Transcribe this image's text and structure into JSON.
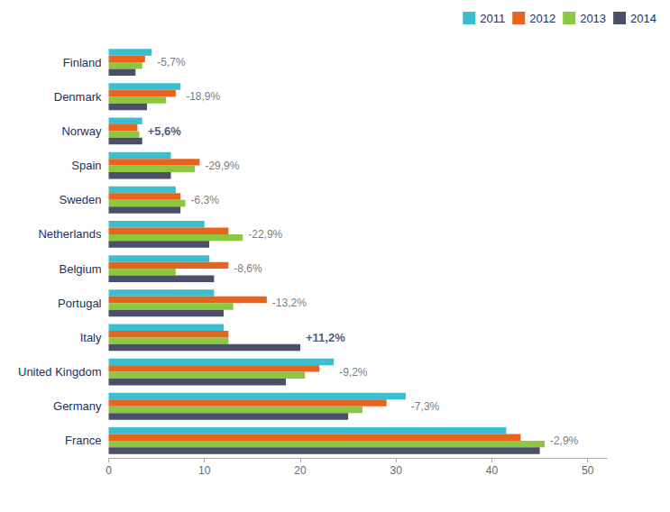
{
  "chart_data": {
    "type": "bar",
    "orientation": "horizontal",
    "categories": [
      "Finland",
      "Denmark",
      "Norway",
      "Spain",
      "Sweden",
      "Netherlands",
      "Belgium",
      "Portugal",
      "Italy",
      "United Kingdom",
      "Germany",
      "France"
    ],
    "series": [
      {
        "name": "2011",
        "color": "#3bbfcf",
        "values": [
          4.5,
          7.5,
          3.5,
          6.5,
          7.0,
          10.0,
          10.5,
          11.0,
          12.0,
          23.5,
          31.0,
          41.5
        ]
      },
      {
        "name": "2012",
        "color": "#e8641e",
        "values": [
          3.8,
          7.0,
          3.0,
          9.5,
          7.5,
          12.5,
          12.5,
          16.5,
          12.5,
          22.0,
          29.0,
          43.0
        ]
      },
      {
        "name": "2013",
        "color": "#8dc63f",
        "values": [
          3.5,
          6.0,
          3.2,
          9.0,
          8.0,
          14.0,
          7.0,
          13.0,
          12.5,
          20.5,
          26.5,
          45.5
        ]
      },
      {
        "name": "2014",
        "color": "#4b5068",
        "values": [
          2.8,
          4.0,
          3.5,
          6.5,
          7.5,
          10.5,
          11.0,
          12.0,
          20.0,
          18.5,
          25.0,
          45.0
        ]
      }
    ],
    "xlim": [
      0,
      52
    ],
    "xticks": [
      0,
      10,
      20,
      30,
      40,
      50
    ],
    "grid": false,
    "legend": "upper right",
    "annotations": [
      {
        "category": "Finland",
        "text": "-5,7%"
      },
      {
        "category": "Denmark",
        "text": "-18,9%"
      },
      {
        "category": "Norway",
        "text": "+5,6%"
      },
      {
        "category": "Spain",
        "text": "-29,9%"
      },
      {
        "category": "Sweden",
        "text": "-6,3%"
      },
      {
        "category": "Netherlands",
        "text": "-22,9%"
      },
      {
        "category": "Belgium",
        "text": "-8,6%"
      },
      {
        "category": "Portugal",
        "text": "-13,2%"
      },
      {
        "category": "Italy",
        "text": "+11,2%"
      },
      {
        "category": "United Kingdom",
        "text": "-9,2%"
      },
      {
        "category": "Germany",
        "text": "-7,3%"
      },
      {
        "category": "France",
        "text": "-2,9%"
      }
    ]
  }
}
